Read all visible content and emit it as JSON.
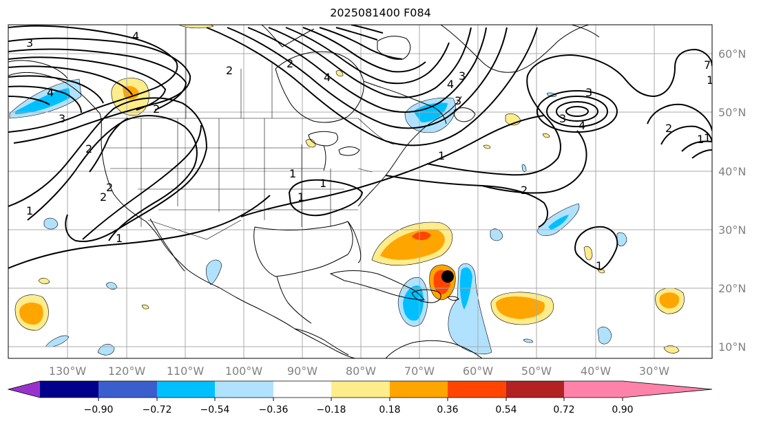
{
  "title": "2025081400 F084",
  "map": {
    "longitude_labels": [
      "130°W",
      "120°W",
      "110°W",
      "100°W",
      "90°W",
      "80°W",
      "70°W",
      "60°W",
      "50°W",
      "40°W",
      "30°W"
    ],
    "latitude_labels": [
      "60°N",
      "50°N",
      "40°N",
      "30°N",
      "20°N",
      "10°N"
    ],
    "contour_labels": [
      "4",
      "3",
      "3",
      "4",
      "2",
      "2",
      "2",
      "1",
      "1",
      "2",
      "1",
      "2",
      "4",
      "3",
      "3",
      "4",
      "2",
      "1",
      "1",
      "2",
      "1",
      "2",
      "3",
      "3",
      "4",
      "1",
      "1",
      "1",
      "1",
      "7"
    ],
    "storm_marker": "black dot"
  },
  "colorbar": {
    "tick_labels": [
      "−0.90",
      "−0.72",
      "−0.54",
      "−0.36",
      "−0.18",
      "0.18",
      "0.36",
      "0.54",
      "0.72",
      "0.90"
    ],
    "colors": [
      "#9932cc",
      "#00008b",
      "#3a5fcd",
      "#00bfff",
      "#b0e2ff",
      "#ffffff",
      "#ffec8b",
      "#ffa500",
      "#ff4500",
      "#b22222",
      "#ff82ab"
    ]
  }
}
